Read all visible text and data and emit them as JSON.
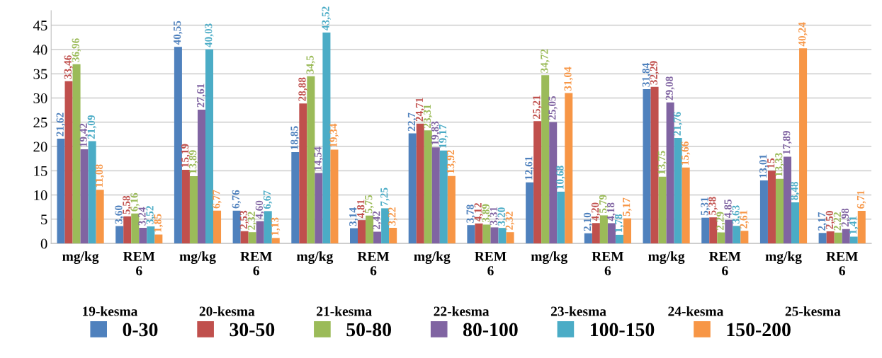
{
  "chart_data": {
    "type": "bar",
    "categories": [
      "mg/kg",
      "REM\n6",
      "mg/kg",
      "REM\n6",
      "mg/kg",
      "REM\n6",
      "mg/kg",
      "REM\n6",
      "mg/kg",
      "REM\n6",
      "mg/kg",
      "REM\n6",
      "mg/kg",
      "REM\n6"
    ],
    "series": [
      {
        "name": "0-30",
        "color": "#4f81bd",
        "values": [
          21.62,
          3.6,
          40.55,
          6.76,
          18.85,
          3.14,
          22.7,
          3.78,
          12.61,
          2.1,
          31.84,
          5.31,
          13.01,
          2.17
        ],
        "value_labels": [
          "21,62",
          "3,60",
          "40,55",
          "6,76",
          "18,85",
          "3,14",
          "22,7",
          "3,78",
          "12,61",
          "2,10",
          "31,84",
          "5,31",
          "13,01",
          "2,17"
        ]
      },
      {
        "name": "30-50",
        "color": "#c0504d",
        "values": [
          33.46,
          5.58,
          15.19,
          2.53,
          28.88,
          4.81,
          24.71,
          4.12,
          25.21,
          4.2,
          32.29,
          5.38,
          15,
          2.5
        ],
        "value_labels": [
          "33,46",
          "5,58",
          "15,19",
          "2,53",
          "28,88",
          "4,81",
          "24,71",
          "4,12",
          "25,21",
          "4,20",
          "32,29",
          "5,38",
          "15",
          "2,50"
        ]
      },
      {
        "name": "50-80",
        "color": "#9bbb59",
        "values": [
          36.96,
          6.16,
          13.89,
          2.32,
          34.5,
          5.75,
          23.31,
          3.89,
          34.72,
          5.79,
          13.75,
          2.29,
          13.33,
          2.22
        ],
        "value_labels": [
          "36,96",
          "6,16",
          "13,89",
          "2,32",
          "34,5",
          "5,75",
          "23,31",
          "3,89",
          "34,72",
          "5,79",
          "13,75",
          "2,29",
          "13,33",
          "2,22"
        ]
      },
      {
        "name": "80-100",
        "color": "#8064a2",
        "values": [
          19.42,
          3.24,
          27.61,
          4.6,
          14.54,
          2.42,
          19.83,
          3.31,
          25.05,
          4.18,
          29.08,
          4.85,
          17.89,
          2.98
        ],
        "value_labels": [
          "19,42",
          "3,24",
          "27,61",
          "4,60",
          "14,54",
          "2,42",
          "19,83",
          "3,31",
          "25,05",
          "4,18",
          "29,08",
          "4,85",
          "17,89",
          "2,98"
        ]
      },
      {
        "name": "100-150",
        "color": "#4bacc6",
        "values": [
          21.09,
          3.52,
          40.03,
          6.67,
          43.52,
          7.25,
          19.17,
          3.2,
          10.68,
          1.78,
          21.76,
          3.63,
          8.48,
          1.41
        ],
        "value_labels": [
          "21,09",
          "3,52",
          "40,03",
          "6,67",
          "43,52",
          "7,25",
          "19,17",
          "3,20",
          "10,68",
          "1,78",
          "21,76",
          "3,63",
          "8,48",
          "1,41"
        ]
      },
      {
        "name": "150-200",
        "color": "#f79646",
        "values": [
          11.08,
          1.85,
          6.77,
          1.13,
          19.34,
          3.22,
          13.92,
          2.32,
          31.04,
          5.17,
          15.66,
          2.61,
          40.24,
          6.71
        ],
        "value_labels": [
          "11,08",
          "1,85",
          "6,77",
          "1,13",
          "19,34",
          "3,22",
          "13,92",
          "2,32",
          "31,04",
          "5,17",
          "15,66",
          "2,61",
          "40,24",
          "6,71"
        ]
      }
    ],
    "annotations": [
      "19-kesma",
      "20-kesma",
      "21-kesma",
      "22-kesma",
      "23-kesma",
      "24-kesma",
      "25-kesma"
    ],
    "ylim": [
      0,
      48
    ],
    "yticks": [
      0,
      5,
      10,
      15,
      20,
      25,
      30,
      35,
      40,
      45
    ],
    "grid": "y",
    "legend": "bottom"
  }
}
